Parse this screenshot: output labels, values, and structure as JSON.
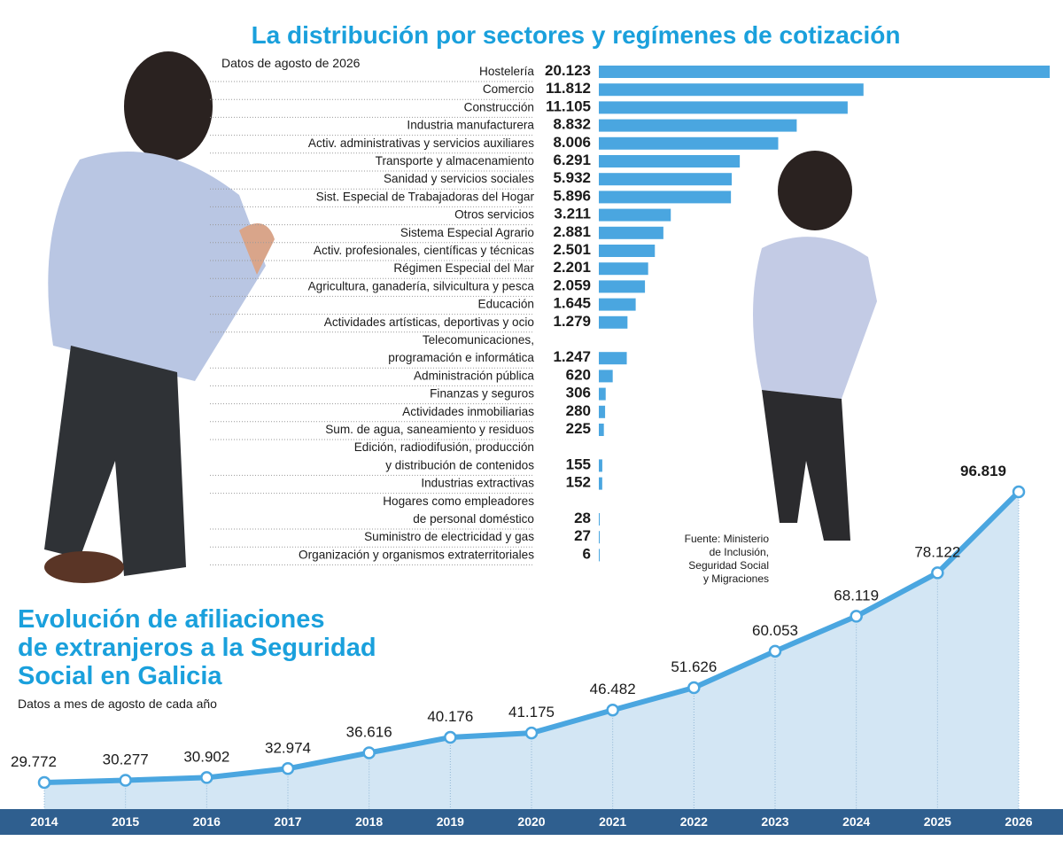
{
  "chart_data": [
    {
      "type": "hbar",
      "title": "La distribución por sectores y regímenes de cotización",
      "subtitle": "Datos de agosto de 2026",
      "source": "Fuente: Ministerio\nde Inclusión,\nSeguridad Social\ny Migraciones",
      "color": "#4aa6e0",
      "categories": [
        "Hostelería",
        "Comercio",
        "Construcción",
        "Industria manufacturera",
        "Activ. administrativas y servicios auxiliares",
        "Transporte y almacenamiento",
        "Sanidad y servicios sociales",
        "Sist. Especial de Trabajadoras del Hogar",
        "Otros servicios",
        "Sistema Especial Agrario",
        "Activ. profesionales, científicas y técnicas",
        "Régimen Especial del Mar",
        "Agricultura, ganadería, silvicultura y pesca",
        "Educación",
        "Actividades artísticas, deportivas y ocio",
        "Telecomunicaciones,\nprogramación e informática",
        "Administración pública",
        "Finanzas y seguros",
        "Actividades inmobiliarias",
        "Sum. de agua, saneamiento y residuos",
        "Edición, radiodifusión, producción\ny distribución de contenidos",
        "Industrias extractivas",
        "Hogares como empleadores\nde personal doméstico",
        "Suministro de electricidad y gas",
        "Organización y organismos extraterritoriales"
      ],
      "values": [
        20123,
        11812,
        11105,
        8832,
        8006,
        6291,
        5932,
        5896,
        3211,
        2881,
        2501,
        2201,
        2059,
        1645,
        1279,
        1247,
        620,
        306,
        280,
        225,
        155,
        152,
        28,
        27,
        6
      ],
      "value_labels": [
        "20.123",
        "11.812",
        "11.105",
        "8.832",
        "8.006",
        "6.291",
        "5.932",
        "5.896",
        "3.211",
        "2.881",
        "2.501",
        "2.201",
        "2.059",
        "1.645",
        "1.279",
        "1.247",
        "620",
        "306",
        "280",
        "225",
        "155",
        "152",
        "28",
        "27",
        "6"
      ]
    },
    {
      "type": "area-line",
      "title": "Evolución de afiliaciones\nde extranjeros a la Seguridad\nSocial en Galicia",
      "subtitle": "Datos a mes de agosto de cada año",
      "color": "#4aa6e0",
      "categories": [
        "2014",
        "2015",
        "2016",
        "2017",
        "2018",
        "2019",
        "2020",
        "2021",
        "2022",
        "2023",
        "2024",
        "2025",
        "2026"
      ],
      "values": [
        29772,
        30277,
        30902,
        32974,
        36616,
        40176,
        41175,
        46482,
        51626,
        60053,
        68119,
        78122,
        96819
      ],
      "value_labels": [
        "29.772",
        "30.277",
        "30.902",
        "32.974",
        "36.616",
        "40.176",
        "41.175",
        "46.482",
        "51.626",
        "60.053",
        "68.119",
        "78.122",
        "96.819"
      ]
    }
  ]
}
